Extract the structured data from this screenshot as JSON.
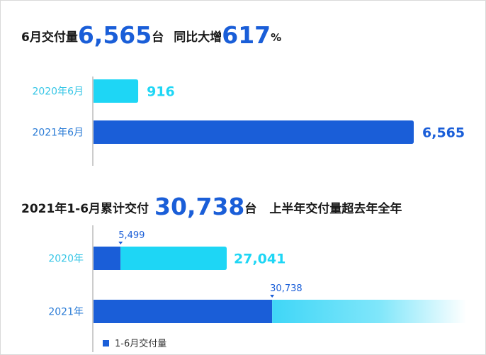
{
  "headline1": {
    "prefix": "6月交付量",
    "number": "6,565",
    "unit": "台",
    "middle": "同比大增",
    "pct_number": "617",
    "pct_sign": "%"
  },
  "headline2": {
    "prefix": "2021年1-6月累计交付",
    "number": "30,738",
    "unit": "台",
    "suffix": "上半年交付量超去年全年"
  },
  "colors": {
    "dark_blue": "#1a5ed8",
    "light_blue": "#1ed6f5",
    "label_light": "#37c6e6",
    "label_dark": "#2a7bd6"
  },
  "chart_data": [
    {
      "type": "bar",
      "orientation": "horizontal",
      "categories": [
        "2020年6月",
        "2021年6月"
      ],
      "values": [
        916,
        6565
      ],
      "data_labels": [
        "916",
        "6,565"
      ],
      "bar_colors": [
        "#1ed6f5",
        "#1a5ed8"
      ]
    },
    {
      "type": "bar",
      "orientation": "horizontal",
      "stacked": true,
      "categories": [
        "2020年",
        "2021年"
      ],
      "series": [
        {
          "name": "1-6月交付量",
          "values": [
            5499,
            30738
          ],
          "data_labels": [
            "5,499",
            "30,738"
          ],
          "color": "#1a5ed8"
        },
        {
          "values": [
            21542,
            null
          ],
          "color": "#1ed6f5"
        }
      ],
      "totals": [
        27041,
        null
      ],
      "total_labels": [
        "27,041",
        ""
      ],
      "legend": {
        "label": "1-6月交付量",
        "position": "bottom-left"
      }
    }
  ]
}
